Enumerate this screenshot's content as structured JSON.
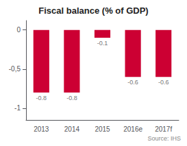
{
  "chart_data": {
    "type": "bar",
    "title": "Fiscal balance (% of GDP)",
    "categories": [
      "2013",
      "2014",
      "2015",
      "2016e",
      "2017f"
    ],
    "values": [
      -0.8,
      -0.8,
      -0.1,
      -0.6,
      -0.6
    ],
    "color": "#cc0033",
    "ylim": [
      -1.15,
      0.12
    ],
    "yticks": [
      0,
      {
        "value": -0.5,
        "label": "-0,5"
      },
      -1
    ],
    "grid": false,
    "data_labels": true,
    "annotations": [
      "Source: IHS"
    ]
  }
}
